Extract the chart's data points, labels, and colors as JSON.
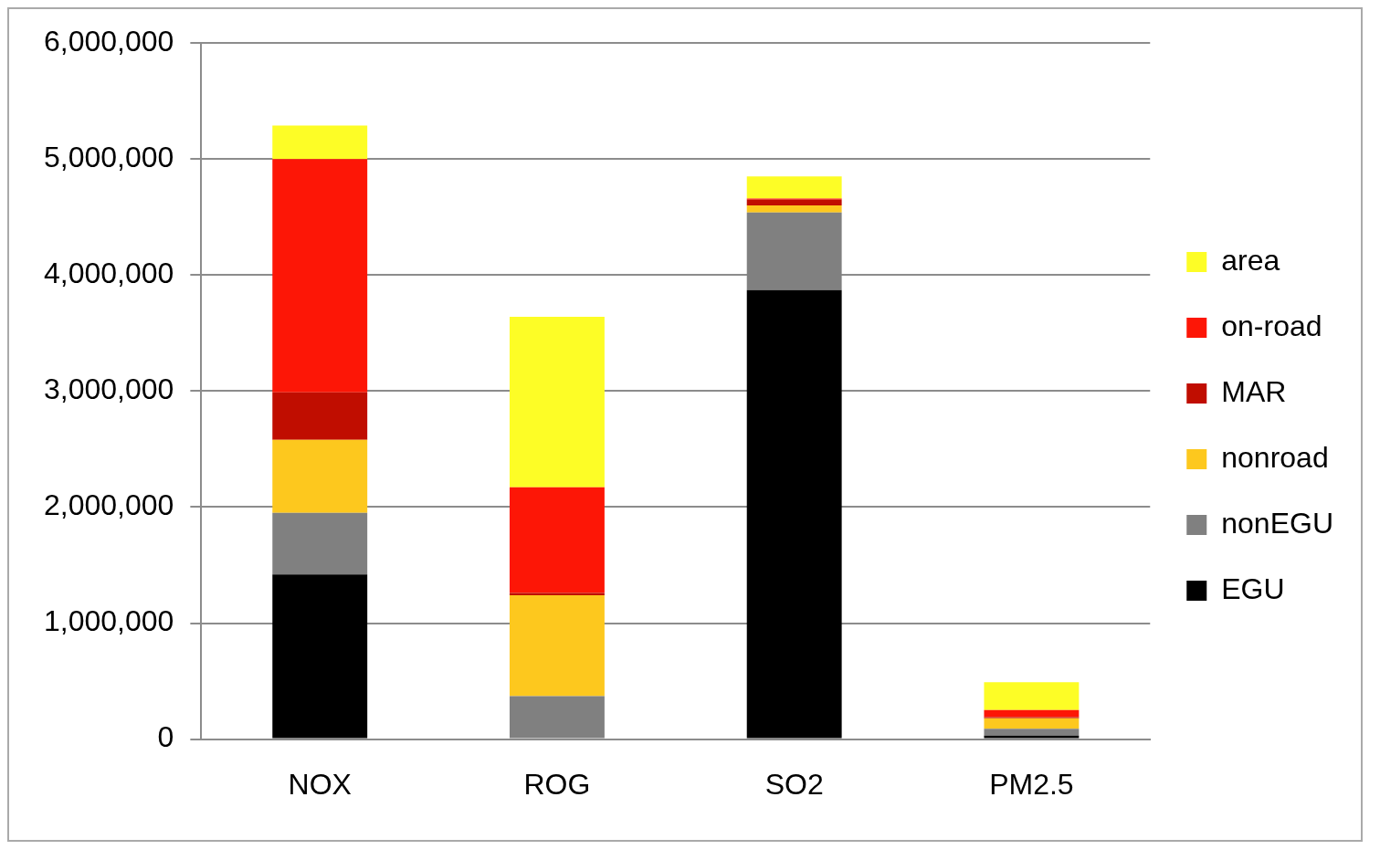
{
  "chart_data": {
    "type": "bar",
    "stacked": true,
    "categories": [
      "NOX",
      "ROG",
      "SO2",
      "PM2.5"
    ],
    "series": [
      {
        "name": "EGU",
        "color": "#000000",
        "values": [
          1420000,
          0,
          3870000,
          30000
        ]
      },
      {
        "name": "nonEGU",
        "color": "#808080",
        "values": [
          530000,
          370000,
          670000,
          60000
        ]
      },
      {
        "name": "nonroad",
        "color": "#fdc81e",
        "values": [
          630000,
          870000,
          60000,
          90000
        ]
      },
      {
        "name": "MAR",
        "color": "#c00d00",
        "values": [
          410000,
          20000,
          50000,
          10000
        ]
      },
      {
        "name": "on-road",
        "color": "#fd1606",
        "values": [
          2010000,
          910000,
          10000,
          60000
        ]
      },
      {
        "name": "area",
        "color": "#fdfd26",
        "values": [
          290000,
          1470000,
          190000,
          240000
        ]
      }
    ],
    "ylim": [
      0,
      6000000
    ],
    "yticks": [
      0,
      {
        "value": 1000000,
        "label": "1,000,000"
      },
      {
        "value": 2000000,
        "label": "2,000,000"
      },
      {
        "value": 3000000,
        "label": "3,000,000"
      },
      {
        "value": 4000000,
        "label": "4,000,000"
      },
      {
        "value": 5000000,
        "label": "5,000,000"
      },
      {
        "value": 6000000,
        "label": "6,000,000"
      }
    ],
    "grid": "y",
    "legend": "right"
  }
}
